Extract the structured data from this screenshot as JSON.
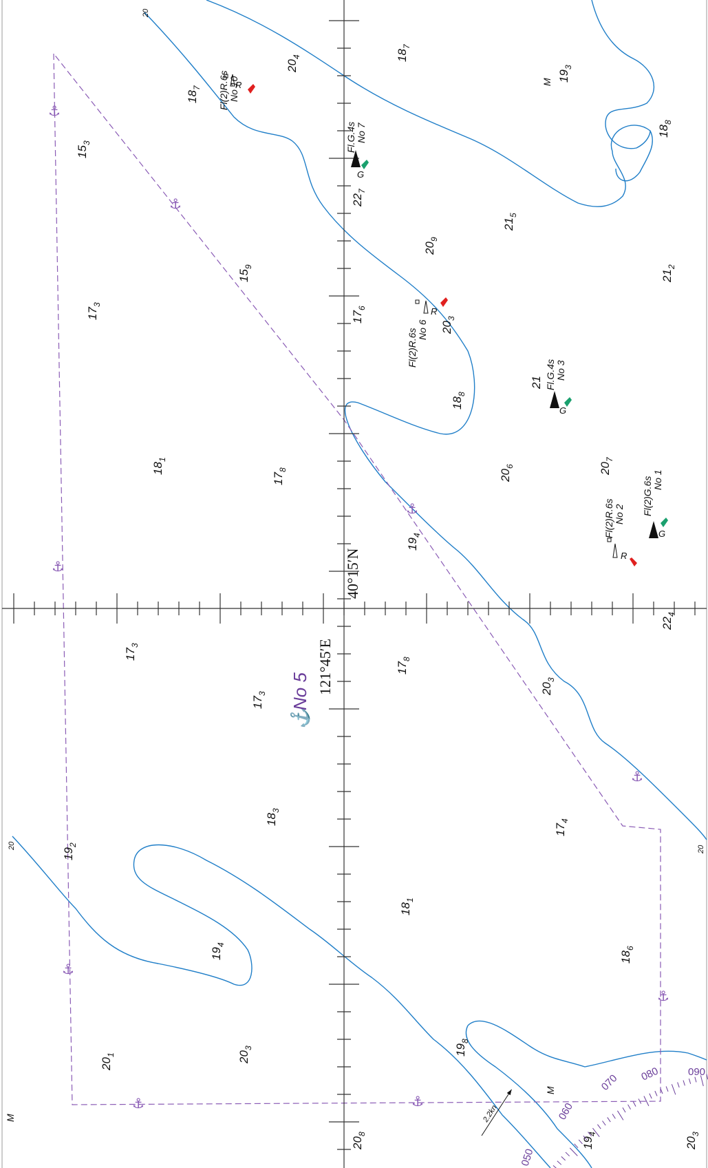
{
  "chart": {
    "border_color": "#9a9a9a",
    "contour_color": "#1f7ec8",
    "anchorage_color": "#8a5bb5",
    "red_buoy_color": "#e0201f",
    "green_buoy_color": "#1aa06e",
    "latitude_label": "40°15′N",
    "longitude_label": "121°45′E",
    "anchorage_name": "No 5",
    "anchor_icon": "anchor-icon",
    "lights": {
      "no10": {
        "char": "Fl(2)R.6s",
        "name": "No 10",
        "colour": "R"
      },
      "no7": {
        "char": "Fl.G.4s",
        "name": "No 7",
        "colour": "G"
      },
      "no6": {
        "char": "Fl(2)R.6s",
        "name": "No 6",
        "colour": "R"
      },
      "no3": {
        "char": "Fl.G.4s",
        "name": "No 3",
        "colour": "G"
      },
      "no2": {
        "char": "Fl(2)R.6s",
        "name": "No 2",
        "colour": "R"
      },
      "no1": {
        "char": "Fl(2)G.6s",
        "name": "No 1",
        "colour": "G"
      }
    },
    "soundings": {
      "s204": {
        "m": "20",
        "dm": "4"
      },
      "s187a": {
        "m": "18",
        "dm": "7"
      },
      "s187b": {
        "m": "18",
        "dm": "7"
      },
      "s193": {
        "m": "19",
        "dm": "3"
      },
      "s188a": {
        "m": "18",
        "dm": "8"
      },
      "s153": {
        "m": "15",
        "dm": "3"
      },
      "s227": {
        "m": "22",
        "dm": "7"
      },
      "s209": {
        "m": "20",
        "dm": "9"
      },
      "s215": {
        "m": "21",
        "dm": "5"
      },
      "s159": {
        "m": "15",
        "dm": "9"
      },
      "s173a": {
        "m": "17",
        "dm": "3"
      },
      "s176": {
        "m": "17",
        "dm": "6"
      },
      "s203a": {
        "m": "20",
        "dm": "3"
      },
      "s212": {
        "m": "21",
        "dm": "2"
      },
      "s188b": {
        "m": "18",
        "dm": "8"
      },
      "s21": {
        "m": "21",
        "dm": ""
      },
      "s181a": {
        "m": "18",
        "dm": "1"
      },
      "s178a": {
        "m": "17",
        "dm": "8"
      },
      "s206": {
        "m": "20",
        "dm": "6"
      },
      "s207": {
        "m": "20",
        "dm": "7"
      },
      "s194a": {
        "m": "19",
        "dm": "4"
      },
      "s224": {
        "m": "22",
        "dm": "4"
      },
      "s173b": {
        "m": "17",
        "dm": "3"
      },
      "s173c": {
        "m": "17",
        "dm": "3"
      },
      "s178b": {
        "m": "17",
        "dm": "8"
      },
      "s203b": {
        "m": "20",
        "dm": "3"
      },
      "s183": {
        "m": "18",
        "dm": "3"
      },
      "s174": {
        "m": "17",
        "dm": "4"
      },
      "s192": {
        "m": "19",
        "dm": "2"
      },
      "s181b": {
        "m": "18",
        "dm": "1"
      },
      "s194b": {
        "m": "19",
        "dm": "4"
      },
      "s186": {
        "m": "18",
        "dm": "6"
      },
      "s201": {
        "m": "20",
        "dm": "1"
      },
      "s203c": {
        "m": "20",
        "dm": "3"
      },
      "s198": {
        "m": "19",
        "dm": "8"
      },
      "s208": {
        "m": "20",
        "dm": "8"
      },
      "s194c": {
        "m": "19",
        "dm": "4"
      },
      "s203d": {
        "m": "20",
        "dm": "3"
      }
    },
    "bottom_quality": "M",
    "contour_label": "20",
    "rose": {
      "ticks": [
        "050",
        "060",
        "070",
        "080",
        "090"
      ],
      "arrow_label": "2.2kn"
    }
  }
}
